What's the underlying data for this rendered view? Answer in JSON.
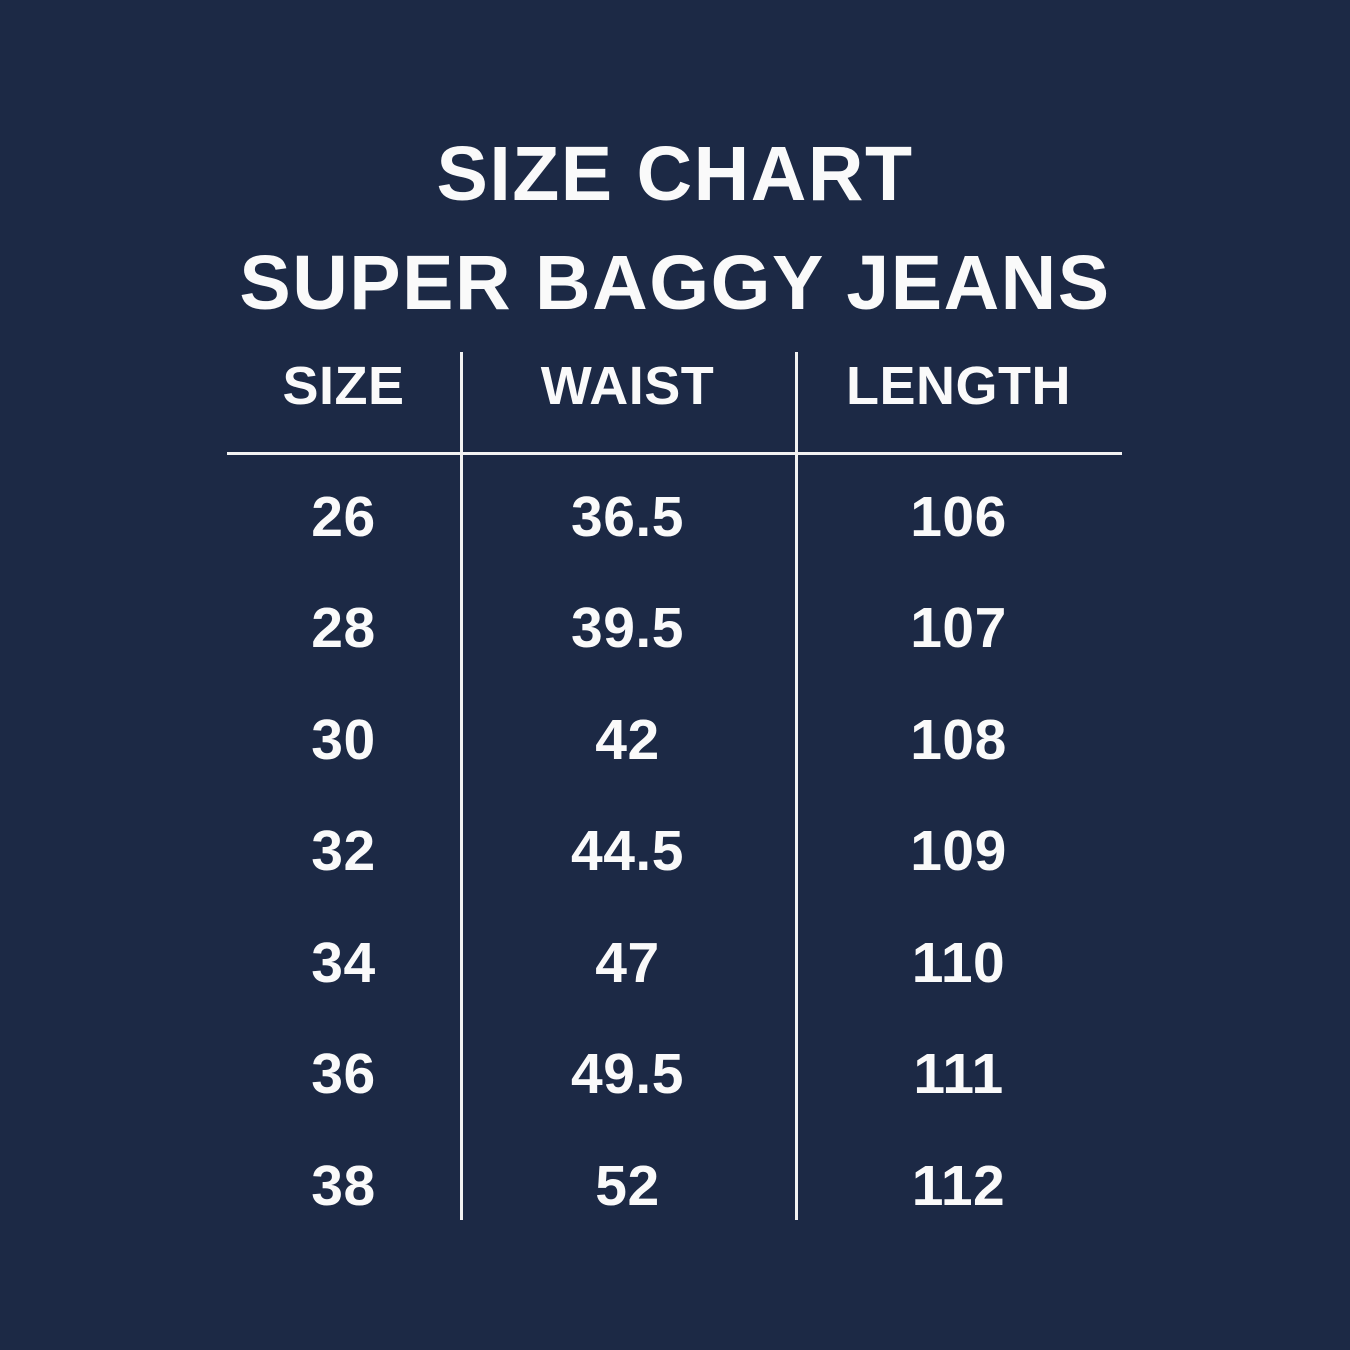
{
  "title": {
    "line1": "SIZE CHART",
    "line2": "SUPER BAGGY JEANS"
  },
  "table": {
    "columns": [
      "SIZE",
      "WAIST",
      "LENGTH"
    ],
    "rows": [
      {
        "size": "26",
        "waist": "36.5",
        "length": "106"
      },
      {
        "size": "28",
        "waist": "39.5",
        "length": "107"
      },
      {
        "size": "30",
        "waist": "42",
        "length": "108"
      },
      {
        "size": "32",
        "waist": "44.5",
        "length": "109"
      },
      {
        "size": "34",
        "waist": "47",
        "length": "110"
      },
      {
        "size": "36",
        "waist": "49.5",
        "length": "111"
      },
      {
        "size": "38",
        "waist": "52",
        "length": "112"
      }
    ]
  },
  "colors": {
    "background": "#1c2945",
    "text": "#fafafa",
    "divider": "#f2f2f2"
  },
  "chart_data": {
    "type": "table",
    "title": "SIZE CHART SUPER BAGGY JEANS",
    "columns": [
      "SIZE",
      "WAIST",
      "LENGTH"
    ],
    "rows": [
      [
        26,
        36.5,
        106
      ],
      [
        28,
        39.5,
        107
      ],
      [
        30,
        42,
        108
      ],
      [
        32,
        44.5,
        109
      ],
      [
        34,
        47,
        110
      ],
      [
        36,
        49.5,
        111
      ],
      [
        38,
        52,
        112
      ]
    ]
  }
}
